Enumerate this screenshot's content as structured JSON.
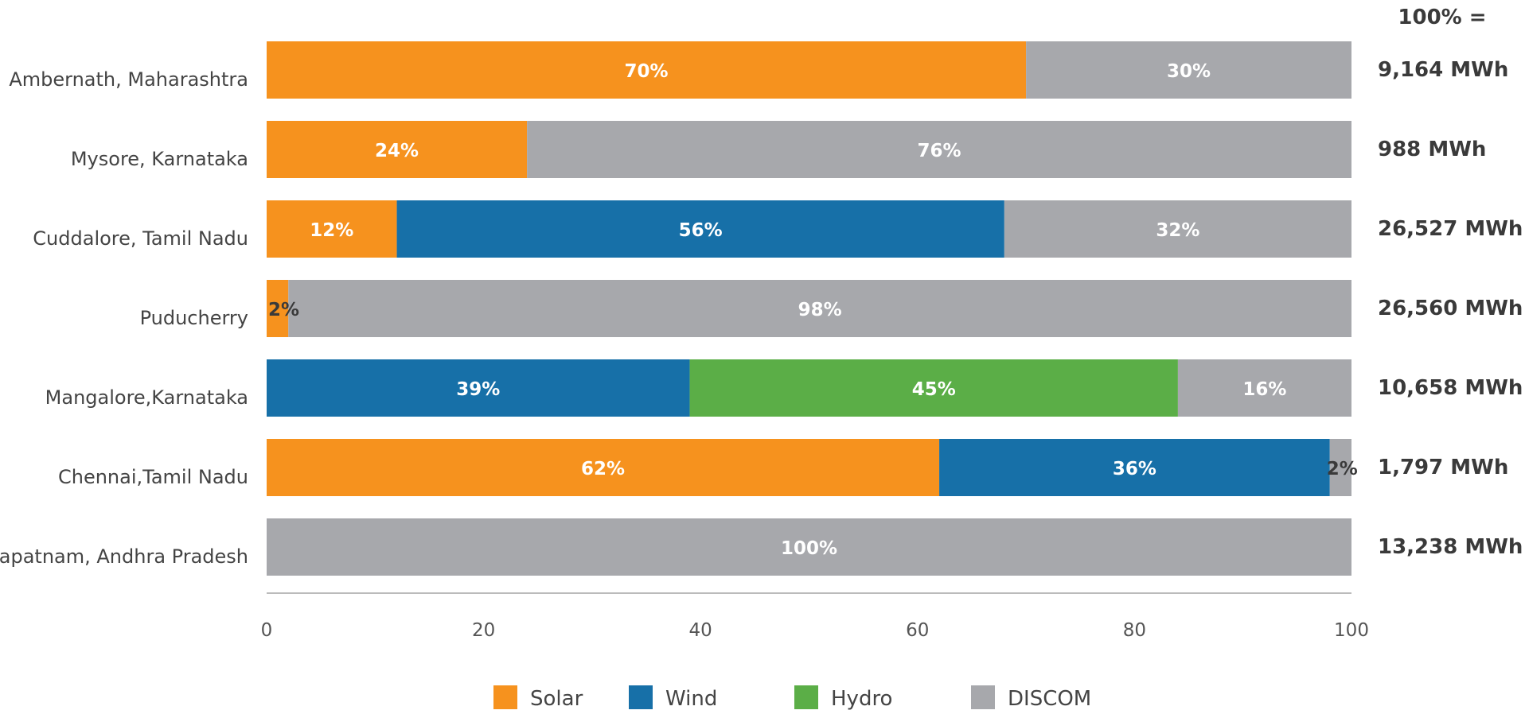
{
  "chart_data": {
    "type": "bar",
    "orientation": "horizontal",
    "stacked": true,
    "xlim": [
      0,
      100
    ],
    "x_ticks": [
      "0",
      "20",
      "40",
      "60",
      "80",
      "100"
    ],
    "grid": false,
    "legend_position": "bottom",
    "total_header": "100% =",
    "categories": [
      "Ambernath, Maharashtra",
      "Mysore, Karnataka",
      "Cuddalore, Tamil Nadu",
      "Puducherry",
      "Mangalore,Karnataka",
      "Chennai,Tamil Nadu",
      "apatnam, Andhra Pradesh"
    ],
    "totals": [
      "9,164 MWh",
      "988 MWh",
      "26,527 MWh",
      "26,560 MWh",
      "10,658 MWh",
      "1,797 MWh",
      "13,238 MWh"
    ],
    "series": [
      {
        "name": "Solar",
        "color": "#F6921E",
        "values": [
          70,
          24,
          12,
          2,
          0,
          62,
          0
        ],
        "labels": [
          "70%",
          "24%",
          "12%",
          "2%",
          "",
          "62%",
          ""
        ]
      },
      {
        "name": "Wind",
        "color": "#1770A8",
        "values": [
          0,
          0,
          56,
          0,
          39,
          36,
          0
        ],
        "labels": [
          "",
          "",
          "56%",
          "",
          "39%",
          "36%",
          ""
        ]
      },
      {
        "name": "Hydro",
        "color": "#5BAE47",
        "values": [
          0,
          0,
          0,
          0,
          45,
          0,
          0
        ],
        "labels": [
          "",
          "",
          "",
          "",
          "45%",
          "",
          ""
        ]
      },
      {
        "name": "DISCOM",
        "color": "#A7A8AC",
        "values": [
          30,
          76,
          32,
          98,
          16,
          2,
          100
        ],
        "labels": [
          "30%",
          "76%",
          "32%",
          "98%",
          "16%",
          "2%",
          "100%"
        ]
      }
    ]
  }
}
